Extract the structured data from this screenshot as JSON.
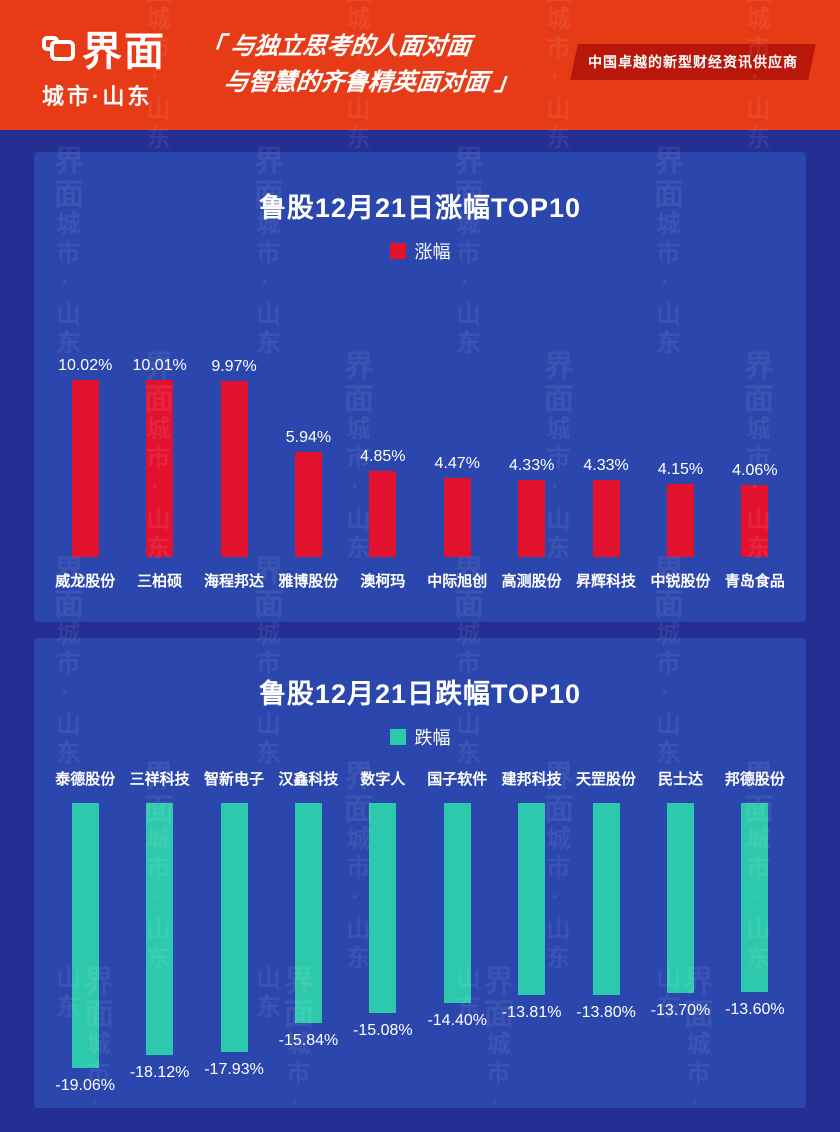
{
  "header": {
    "logo_main": "界面",
    "logo_sub": "城市·山东",
    "quote_line1": "「 与独立思考的人面对面",
    "quote_line2": "与智慧的齐鲁精英面对面 」",
    "badge": "中国卓越的新型财经资讯供应商"
  },
  "watermark": {
    "logo": "界面",
    "sub": "城市·山东"
  },
  "colors": {
    "header_red": "#e73a17",
    "badge_red": "#b9170a",
    "page_blue": "#242e93",
    "panel_blue": "#2b46ad",
    "gain_red": "#e2122e",
    "loss_teal": "#2cc9ac"
  },
  "chart_data": [
    {
      "type": "bar",
      "title": "鲁股12月21日涨幅TOP10",
      "legend": "涨幅",
      "legend_position": "top-center",
      "orientation": "up",
      "bar_color": "#e2122e",
      "grid": false,
      "ylim": [
        0,
        11
      ],
      "categories": [
        "威龙股份",
        "三柏硕",
        "海程邦达",
        "雅博股份",
        "澳柯玛",
        "中际旭创",
        "高测股份",
        "昇辉科技",
        "中锐股份",
        "青岛食品"
      ],
      "values": [
        10.02,
        10.01,
        9.97,
        5.94,
        4.85,
        4.47,
        4.33,
        4.33,
        4.15,
        4.06
      ],
      "value_labels": [
        "10.02%",
        "10.01%",
        "9.97%",
        "5.94%",
        "4.85%",
        "4.47%",
        "4.33%",
        "4.33%",
        "4.15%",
        "4.06%"
      ]
    },
    {
      "type": "bar",
      "title": "鲁股12月21日跌幅TOP10",
      "legend": "跌幅",
      "legend_position": "top-center",
      "orientation": "down",
      "bar_color": "#2cc9ac",
      "grid": false,
      "ylim": [
        -20,
        0
      ],
      "categories": [
        "泰德股份",
        "三祥科技",
        "智新电子",
        "汉鑫科技",
        "数字人",
        "国子软件",
        "建邦科技",
        "天罡股份",
        "民士达",
        "邦德股份"
      ],
      "values": [
        -19.06,
        -18.12,
        -17.93,
        -15.84,
        -15.08,
        -14.4,
        -13.81,
        -13.8,
        -13.7,
        -13.6
      ],
      "value_labels": [
        "-19.06%",
        "-18.12%",
        "-17.93%",
        "-15.84%",
        "-15.08%",
        "-14.40%",
        "-13.81%",
        "-13.80%",
        "-13.70%",
        "-13.60%"
      ]
    }
  ]
}
